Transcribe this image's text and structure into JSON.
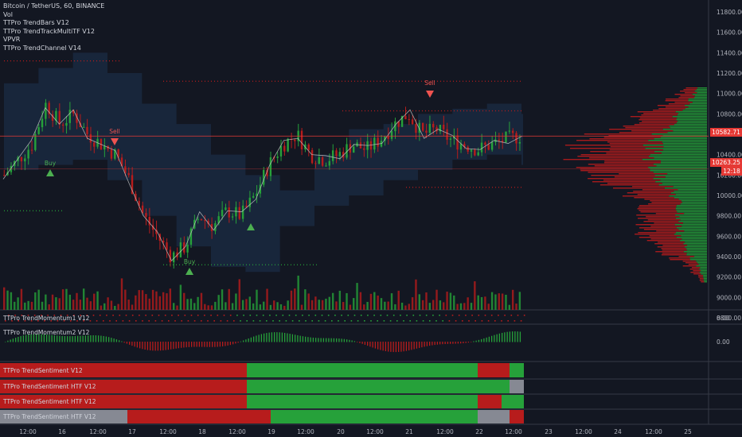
{
  "legend": {
    "symbol": "Bitcoin / TetherUS, 60, BINANCE",
    "items": [
      "Vol",
      "TTPro TrendBars V12",
      "TTPro TrendTrackMultiTF V12",
      "VPVR",
      "TTPro TrendChannel V14"
    ]
  },
  "panes": {
    "momentum1": "TTPro TrendMomentum1 V12",
    "momentum2": "TTPro TrendMomentum2 V12",
    "sentiment": "TTPro TrendSentiment V12",
    "sentiment_htf1": "TTPro TrendSentiment HTF V12",
    "sentiment_htf2": "TTPro TrendSentiment HTF V12",
    "sentiment_htf3": "TTPro TrendSentiment HTF V12"
  },
  "price_axis": {
    "ticks": [
      "11800.00",
      "11600.00",
      "11400.00",
      "11200.00",
      "11000.00",
      "10800.00",
      "10600.00",
      "10400.00",
      "10200.00",
      "10000.00",
      "9800.00",
      "9600.00",
      "9400.00",
      "9200.00",
      "9000.00",
      "8800.00"
    ],
    "current_price": "10582.71",
    "second_price": "10263.25",
    "countdown": "12:18",
    "partial_label": "10"
  },
  "indicator_axis": {
    "momentum1": "0.00",
    "momentum2": "0.00"
  },
  "time_axis": [
    "12:00",
    "16",
    "12:00",
    "17",
    "12:00",
    "18",
    "12:00",
    "19",
    "12:00",
    "20",
    "12:00",
    "21",
    "12:00",
    "22",
    "12:00",
    "23",
    "12:00",
    "24",
    "12:00",
    "25"
  ],
  "signals": {
    "buy": "Buy",
    "sell": "Sell"
  },
  "colors": {
    "bg": "#131722",
    "up": "#26a13a",
    "down": "#b71c1c",
    "channel": "#1e3350",
    "tag_red": "#e53935"
  },
  "chart_data": {
    "type": "candlestick",
    "title": "Bitcoin / TetherUS, 60, BINANCE",
    "ylim": [
      8800,
      11800
    ],
    "close_path": [
      10200,
      10350,
      10500,
      10900,
      10700,
      10800,
      10600,
      10500,
      10400,
      10150,
      9800,
      9600,
      9400,
      9500,
      9800,
      9700,
      9850,
      9800,
      10000,
      10300,
      10500,
      10600,
      10400,
      10350,
      10400,
      10500,
      10450,
      10550,
      10700,
      10800,
      10600,
      10650,
      10550,
      10500,
      10450,
      10500,
      10550,
      10583
    ],
    "channel_upper": [
      11100,
      11250,
      11400,
      11200,
      10900,
      10700,
      10400,
      10200,
      10050,
      10400,
      10650,
      10700,
      10800,
      10850,
      10900,
      10800
    ],
    "channel_lower": [
      10250,
      10300,
      10350,
      10150,
      9800,
      9500,
      9300,
      9250,
      9700,
      9900,
      10000,
      10150,
      10250,
      10350,
      10400,
      10300
    ],
    "current_price": 10582.71
  }
}
